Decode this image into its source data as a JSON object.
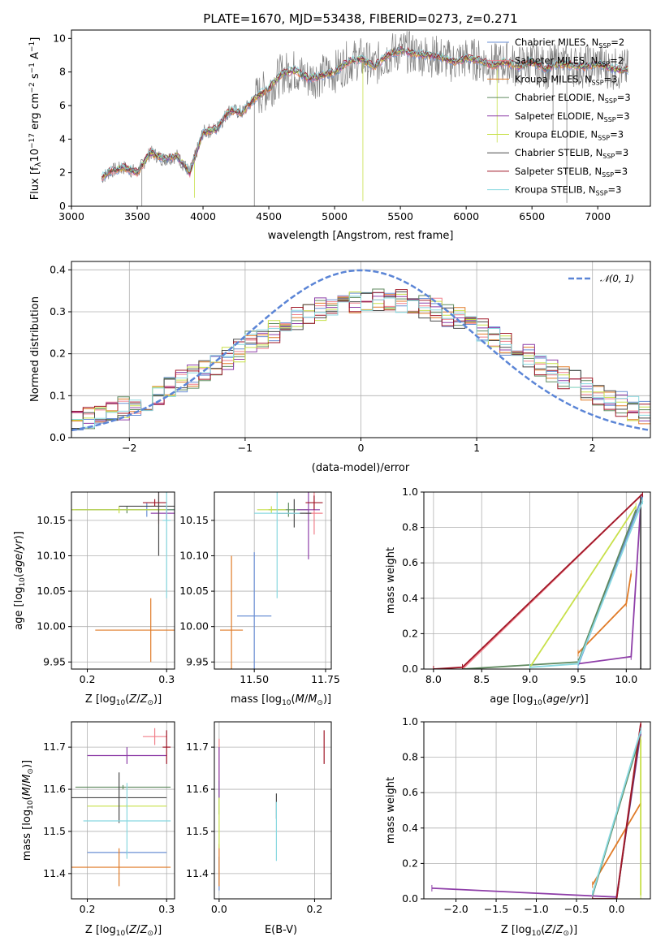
{
  "colors": {
    "chabrier_miles": "#6a8fd4",
    "salpeter_miles": "#f07f8a",
    "kroupa_miles": "#e07b28",
    "chabrier_elodie": "#5f8a5f",
    "salpeter_elodie": "#8e3ea8",
    "kroupa_elodie": "#c8e04a",
    "chabrier_stelib": "#4a4a4a",
    "salpeter_stelib": "#a01828",
    "kroupa_stelib": "#88d8e0",
    "data": "#808080",
    "grid": "#b0b0b0",
    "gaussian": "#5b85d6"
  },
  "chart_data": [
    {
      "type": "line",
      "title": "PLATE=1670, MJD=53438, FIBERID=0273, z=0.271",
      "xlabel": "wavelength [Angstrom, rest frame]",
      "ylabel": "Flux [f_λ 10^-17 erg cm^-2 s^-1 A^-1]",
      "xlim": [
        3000,
        7400
      ],
      "ylim": [
        0,
        10.5
      ],
      "xticks": [
        "3000",
        "3500",
        "4000",
        "4500",
        "5000",
        "5500",
        "6000",
        "6500",
        "7000"
      ],
      "yticks": [
        "0",
        "2",
        "4",
        "6",
        "8",
        "10"
      ],
      "legend_position": "top-right",
      "legend": [
        "Chabrier MILES, N_SSP=2",
        "Salpeter MILES, N_SSP=2",
        "Kroupa MILES, N_SSP=3",
        "Chabrier ELODIE, N_SSP=3",
        "Salpeter ELODIE, N_SSP=3",
        "Kroupa ELODIE, N_SSP=3",
        "Chabrier STELIB, N_SSP=3",
        "Salpeter STELIB, N_SSP=3",
        "Kroupa STELIB, N_SSP=3"
      ],
      "spectrum_x": [
        3230,
        3300,
        3400,
        3500,
        3600,
        3700,
        3800,
        3900,
        4000,
        4100,
        4200,
        4300,
        4400,
        4500,
        4600,
        4700,
        4800,
        4900,
        5000,
        5100,
        5200,
        5300,
        5400,
        5500,
        5600,
        5700,
        5800,
        5900,
        6000,
        6100,
        6200,
        6300,
        6400,
        6500,
        6600,
        6700,
        6800,
        6900,
        7000,
        7100,
        7230
      ],
      "spectrum_y": [
        1.7,
        2.1,
        2.3,
        2.0,
        3.2,
        2.8,
        3.0,
        2.0,
        4.4,
        4.6,
        5.7,
        5.6,
        6.5,
        7.0,
        7.9,
        8.1,
        7.6,
        7.8,
        8.0,
        8.6,
        8.8,
        8.3,
        9.0,
        9.3,
        9.1,
        9.0,
        8.9,
        8.6,
        8.8,
        8.7,
        8.4,
        8.6,
        8.3,
        8.6,
        8.2,
        8.5,
        8.4,
        8.3,
        8.5,
        8.2,
        8.1
      ]
    },
    {
      "type": "line",
      "xlabel": "(data-model)/error",
      "ylabel": "Normed distribution",
      "xlim": [
        -2.5,
        2.5
      ],
      "ylim": [
        0,
        0.42
      ],
      "xticks": [
        "−2",
        "−1",
        "0",
        "1",
        "2"
      ],
      "yticks": [
        "0.0",
        "0.1",
        "0.2",
        "0.3",
        "0.4"
      ],
      "legend": [
        "𝒩(0, 1)"
      ],
      "legend_position": "top-right",
      "gaussian": {
        "mean": 0,
        "sigma": 1
      }
    },
    {
      "type": "scatter",
      "xlabel": "Z [log10(Z/Z⊙)]",
      "ylabel": "age  [log10(age/yr)]",
      "xlim": [
        0.18,
        0.31
      ],
      "ylim": [
        9.94,
        10.19
      ],
      "xticks": [
        "0.2",
        "0.3"
      ],
      "yticks": [
        "9.95",
        "10.00",
        "10.05",
        "10.10",
        "10.15"
      ],
      "series": [
        {
          "x": 0.275,
          "y": 10.165,
          "xerr": 0.09,
          "yerr": 0.01
        },
        {
          "x": 0.29,
          "y": 10.17,
          "xerr": 0.01,
          "yerr": 0.025
        },
        {
          "x": 0.28,
          "y": 9.995,
          "xerr": 0.07,
          "yerr": 0.045
        },
        {
          "x": 0.25,
          "y": 10.165,
          "xerr": 0.09,
          "yerr": 0.005
        },
        {
          "x": 0.3,
          "y": 10.16,
          "xerr": 0.02,
          "yerr": 0.01
        },
        {
          "x": 0.24,
          "y": 10.165,
          "xerr": 0.06,
          "yerr": 0.005
        },
        {
          "x": 0.29,
          "y": 10.17,
          "xerr": 0.05,
          "yerr": 0.07
        },
        {
          "x": 0.285,
          "y": 10.175,
          "xerr": 0.015,
          "yerr": 0.005
        },
        {
          "x": 0.3,
          "y": 10.15,
          "xerr": 0.005,
          "yerr": 0.11
        }
      ]
    },
    {
      "type": "scatter",
      "xlabel": "mass [log10(M/M⊙)]",
      "xlim": [
        11.36,
        11.77
      ],
      "ylim": [
        9.94,
        10.19
      ],
      "xticks": [
        "11.50",
        "11.75"
      ],
      "yticks": [
        "9.95",
        "10.00",
        "10.05",
        "10.10",
        "10.15"
      ],
      "series": [
        {
          "x": 11.5,
          "y": 10.015,
          "xerr": 0.06,
          "yerr": 0.09
        },
        {
          "x": 11.71,
          "y": 10.16,
          "xerr": 0.03,
          "yerr": 0.03
        },
        {
          "x": 11.42,
          "y": 9.995,
          "xerr": 0.04,
          "yerr": 0.105
        },
        {
          "x": 11.62,
          "y": 10.165,
          "xerr": 0.07,
          "yerr": 0.01
        },
        {
          "x": 11.69,
          "y": 10.165,
          "xerr": 0.04,
          "yerr": 0.07
        },
        {
          "x": 11.56,
          "y": 10.165,
          "xerr": 0.05,
          "yerr": 0.005
        },
        {
          "x": 11.64,
          "y": 10.16,
          "xerr": 0.06,
          "yerr": 0.02
        },
        {
          "x": 11.71,
          "y": 10.175,
          "xerr": 0.03,
          "yerr": 0.01
        },
        {
          "x": 11.58,
          "y": 10.16,
          "xerr": 0.08,
          "yerr": 0.12
        }
      ]
    },
    {
      "type": "line",
      "xlabel": "age  [log10(age/yr)]",
      "ylabel": "mass weight",
      "xlim": [
        7.9,
        10.25
      ],
      "ylim": [
        0,
        1.0
      ],
      "xticks": [
        "8.0",
        "8.5",
        "9.0",
        "9.5",
        "10.0"
      ],
      "yticks": [
        "0.0",
        "0.2",
        "0.4",
        "0.6",
        "0.8",
        "1.0"
      ]
    },
    {
      "type": "scatter",
      "xlabel": "Z [log10(Z/Z⊙)]",
      "ylabel": "mass [log10(M/M⊙)]",
      "xlim": [
        0.18,
        0.31
      ],
      "ylim": [
        11.34,
        11.76
      ],
      "xticks": [
        "0.2",
        "0.3"
      ],
      "yticks": [
        "11.4",
        "11.5",
        "11.6",
        "11.7"
      ]
    },
    {
      "type": "scatter",
      "xlabel": "E(B-V)",
      "xlim": [
        -0.01,
        0.235
      ],
      "ylim": [
        11.34,
        11.76
      ],
      "xticks": [
        "0.0",
        "0.2"
      ],
      "yticks": [
        "11.4",
        "11.5",
        "11.6",
        "11.7"
      ]
    },
    {
      "type": "line",
      "xlabel": "Z [log10(Z/Z⊙)]",
      "ylabel": "mass weight",
      "xlim": [
        -2.4,
        0.42
      ],
      "ylim": [
        0,
        1.0
      ],
      "xticks": [
        "−2.0",
        "−1.5",
        "−1.0",
        "−0.5",
        "0.0"
      ],
      "yticks": [
        "0.0",
        "0.2",
        "0.4",
        "0.6",
        "0.8",
        "1.0"
      ]
    }
  ]
}
